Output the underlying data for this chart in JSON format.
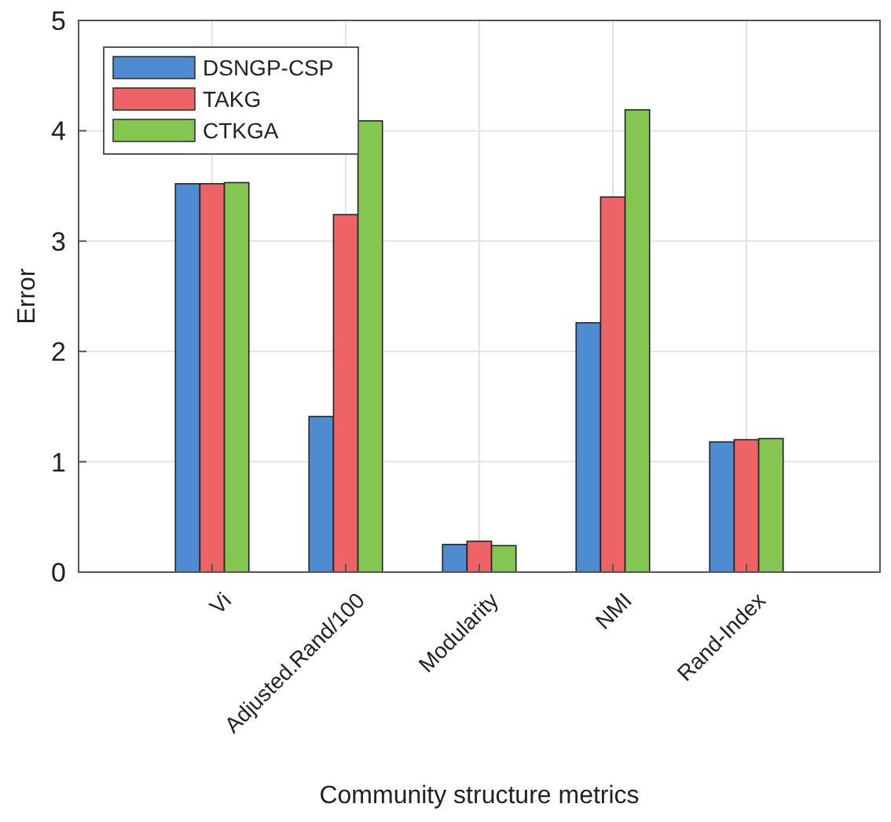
{
  "chart_data": {
    "type": "bar",
    "xlabel": "Community structure metrics",
    "ylabel": "Error",
    "categories": [
      "Vi",
      "Adjusted.Rand/100",
      "Modularity",
      "NMI",
      "Rand-Index"
    ],
    "series": [
      {
        "name": "DSNGP-CSP",
        "color": "#4f8bd0",
        "values": [
          3.52,
          1.41,
          0.25,
          2.26,
          1.18
        ]
      },
      {
        "name": "TAKG",
        "color": "#ee6365",
        "values": [
          3.52,
          3.24,
          0.28,
          3.4,
          1.2
        ]
      },
      {
        "name": "CTKGA",
        "color": "#85c552",
        "values": [
          3.53,
          4.09,
          0.24,
          4.19,
          1.21
        ]
      }
    ],
    "ylim": [
      0,
      5
    ],
    "yticks": [
      0,
      1,
      2,
      3,
      4,
      5
    ],
    "grid": true,
    "legend": "top left"
  }
}
